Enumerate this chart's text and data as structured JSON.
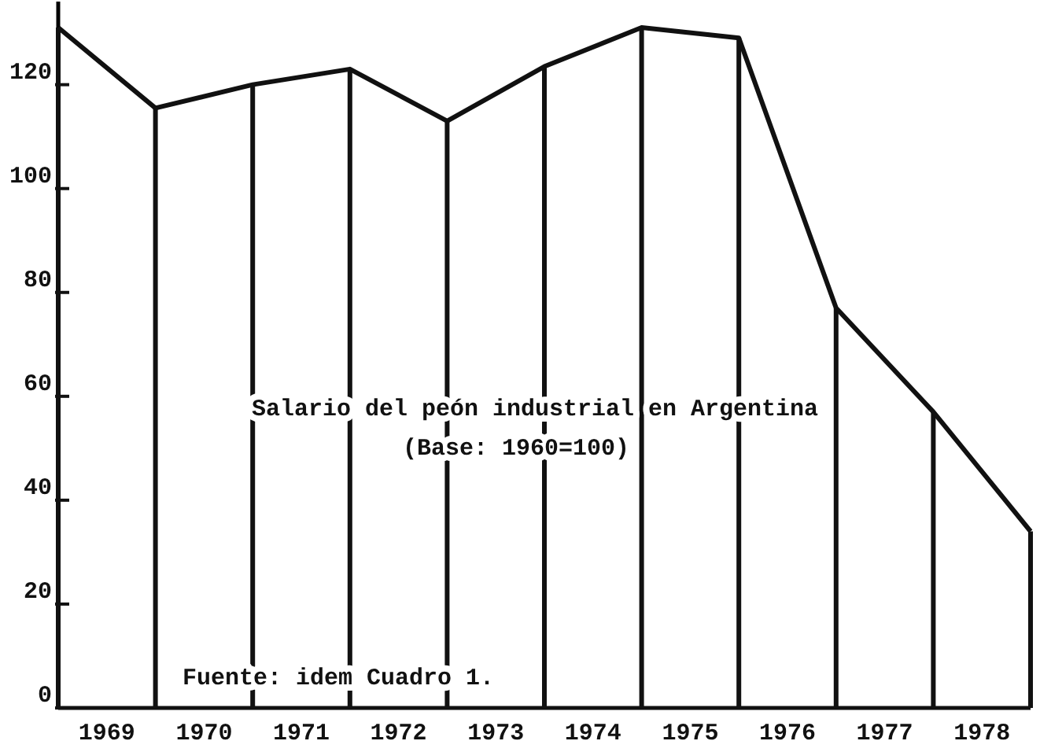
{
  "chart_data": {
    "type": "line",
    "title": "Salario del peón industrial en Argentina",
    "subtitle": "(Base: 1960=100)",
    "annotations": [
      "Fuente: idem Cuadro 1."
    ],
    "x": [
      1969,
      1970,
      1971,
      1972,
      1973,
      1974,
      1975,
      1976,
      1977,
      1978,
      1979
    ],
    "series": [
      {
        "type": "bar",
        "color": "#111111",
        "values": [
          131,
          115.5,
          120,
          123,
          113,
          123.5,
          131,
          129,
          77,
          57,
          34
        ]
      },
      {
        "color": "#111111",
        "values": [
          131,
          115.5,
          120,
          123,
          113,
          123.5,
          131,
          129,
          77,
          57,
          34
        ]
      }
    ],
    "xlim": [
      1969,
      1979
    ],
    "xticks": [
      {
        "value": 1969.5,
        "label": "1969"
      },
      {
        "value": 1970.5,
        "label": "1970"
      },
      {
        "value": 1971.5,
        "label": "1971"
      },
      {
        "value": 1972.5,
        "label": "1972"
      },
      {
        "value": 1973.5,
        "label": "1973"
      },
      {
        "value": 1974.5,
        "label": "1974"
      },
      {
        "value": 1975.5,
        "label": "1975"
      },
      {
        "value": 1976.5,
        "label": "1976"
      },
      {
        "value": 1977.5,
        "label": "1977"
      },
      {
        "value": 1978.5,
        "label": "1978"
      }
    ],
    "ylim": [
      0,
      136
    ],
    "yticks": [
      0,
      20,
      40,
      60,
      80,
      100,
      120
    ],
    "marker": "none",
    "line_style": "solid",
    "grid": false
  }
}
